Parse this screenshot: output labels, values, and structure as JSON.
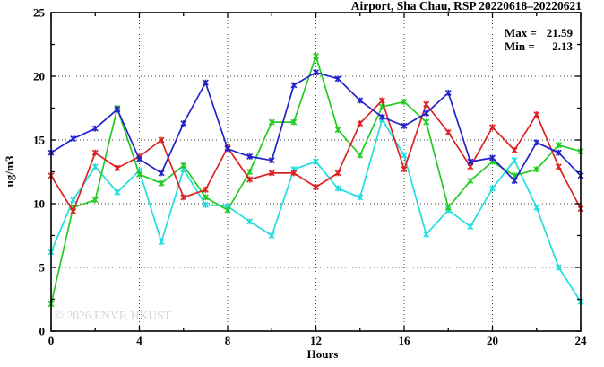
{
  "chart_data": {
    "type": "line",
    "title": "Airport, Sha Chau, RSP 20220618–20220621",
    "xlabel": "Hours",
    "ylabel": "ug/m3",
    "xlim": [
      0,
      24
    ],
    "ylim": [
      0,
      25
    ],
    "x_major_ticks": [
      0,
      4,
      8,
      12,
      16,
      20,
      24
    ],
    "x_minor_ticks": [
      2,
      6,
      10,
      14,
      18,
      22
    ],
    "y_major_ticks": [
      0,
      5,
      10,
      15,
      20,
      25
    ],
    "y_minor_ticks": [
      2.5,
      7.5,
      12.5,
      17.5,
      22.5
    ],
    "grid_x": [
      4,
      8,
      12,
      16,
      20
    ],
    "grid_y": [
      5,
      10,
      15,
      20
    ],
    "grid_style": "dotted",
    "legend": "none",
    "max": 21.59,
    "min": 2.13,
    "x": [
      0,
      1,
      2,
      3,
      4,
      5,
      6,
      7,
      8,
      9,
      10,
      11,
      12,
      13,
      14,
      15,
      16,
      17,
      18,
      19,
      20,
      21,
      22,
      23,
      24
    ],
    "series": [
      {
        "name": "cyan",
        "color": "#22dddd",
        "values": [
          6.2,
          10.3,
          12.9,
          10.9,
          12.6,
          7.0,
          12.7,
          9.9,
          9.8,
          8.6,
          7.5,
          12.7,
          13.3,
          11.2,
          10.5,
          16.6,
          13.8,
          7.6,
          9.5,
          8.2,
          11.2,
          13.4,
          9.7,
          5.0,
          2.3
        ]
      },
      {
        "name": "green",
        "color": "#22cc22",
        "values": [
          2.13,
          9.7,
          10.3,
          17.5,
          12.3,
          11.6,
          13.0,
          10.5,
          9.5,
          12.5,
          16.4,
          16.4,
          21.59,
          15.8,
          13.8,
          17.6,
          18.0,
          16.4,
          9.7,
          11.8,
          13.3,
          12.2,
          12.7,
          14.6,
          14.1
        ]
      },
      {
        "name": "red",
        "color": "#dd2222",
        "values": [
          12.2,
          9.4,
          14.0,
          12.8,
          13.7,
          15.0,
          10.5,
          11.1,
          14.4,
          11.9,
          12.4,
          12.4,
          11.3,
          12.4,
          16.3,
          18.1,
          12.7,
          17.8,
          15.6,
          12.9,
          16.0,
          14.2,
          17.0,
          12.9,
          9.6
        ]
      },
      {
        "name": "blue",
        "color": "#2222cc",
        "values": [
          14.0,
          15.1,
          15.9,
          17.4,
          13.5,
          12.4,
          16.3,
          19.5,
          14.3,
          13.7,
          13.4,
          19.3,
          20.3,
          19.8,
          18.1,
          16.8,
          16.1,
          17.1,
          18.7,
          13.3,
          13.6,
          11.8,
          14.8,
          14.0,
          12.2
        ]
      }
    ]
  },
  "stats": {
    "max_label": "Max =",
    "max_value": "21.59",
    "min_label": "Min =",
    "min_value": "2.13"
  },
  "watermark": "© 2026 ENVF, HKUST"
}
